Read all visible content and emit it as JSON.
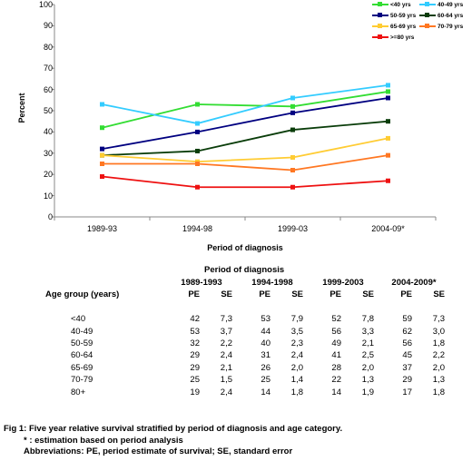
{
  "chart_data": {
    "type": "line",
    "categories": [
      "1989-93",
      "1994-98",
      "1999-03",
      "2004-09*"
    ],
    "ylabel": "Percent",
    "xlabel": "Period of diagnosis",
    "ylim": [
      0,
      100
    ],
    "yticks": [
      0,
      10,
      20,
      30,
      40,
      50,
      60,
      70,
      80,
      90,
      100
    ],
    "grid": false,
    "legend_position": "top-right",
    "series": [
      {
        "name": "<40 yrs",
        "color": "#33dd33",
        "values": [
          42,
          53,
          52,
          59
        ]
      },
      {
        "name": "40-49 yrs",
        "color": "#33ccff",
        "values": [
          53,
          44,
          56,
          62
        ]
      },
      {
        "name": "50-59 yrs",
        "color": "#000080",
        "values": [
          32,
          40,
          49,
          56
        ]
      },
      {
        "name": "60-64 yrs",
        "color": "#0a3d0a",
        "values": [
          29,
          31,
          41,
          45
        ]
      },
      {
        "name": "65-69 yrs",
        "color": "#ffcc33",
        "values": [
          29,
          26,
          28,
          37
        ]
      },
      {
        "name": "70-79 yrs",
        "color": "#ff7722",
        "values": [
          25,
          25,
          22,
          29
        ]
      },
      {
        "name": ">=80 yrs",
        "color": "#ee1111",
        "values": [
          19,
          14,
          14,
          17
        ]
      }
    ]
  },
  "table": {
    "group_header": "Period of diagnosis",
    "age_header": "Age group (years)",
    "periods": [
      "1989-1993",
      "1994-1998",
      "1999-2003",
      "2004-2009*"
    ],
    "pe_label": "PE",
    "se_label": "SE",
    "rows": [
      {
        "age": "<40",
        "values": [
          "42",
          "7,3",
          "53",
          "7,9",
          "52",
          "7,8",
          "59",
          "7,3"
        ]
      },
      {
        "age": "40-49",
        "values": [
          "53",
          "3,7",
          "44",
          "3,5",
          "56",
          "3,3",
          "62",
          "3,0"
        ]
      },
      {
        "age": "50-59",
        "values": [
          "32",
          "2,2",
          "40",
          "2,3",
          "49",
          "2,1",
          "56",
          "1,8"
        ]
      },
      {
        "age": "60-64",
        "values": [
          "29",
          "2,4",
          "31",
          "2,4",
          "41",
          "2,5",
          "45",
          "2,2"
        ]
      },
      {
        "age": "65-69",
        "values": [
          "29",
          "2,1",
          "26",
          "2,0",
          "28",
          "2,0",
          "37",
          "2,0"
        ]
      },
      {
        "age": "70-79",
        "values": [
          "25",
          "1,5",
          "25",
          "1,4",
          "22",
          "1,3",
          "29",
          "1,3"
        ]
      },
      {
        "age": "80+",
        "values": [
          "19",
          "2,4",
          "14",
          "1,8",
          "14",
          "1,9",
          "17",
          "1,8"
        ]
      }
    ]
  },
  "caption": {
    "line1": "Fig 1: Five year relative survival stratified by period of diagnosis and age category.",
    "line2": "* : estimation based on period analysis",
    "line3": "Abbreviations: PE, period estimate of survival; SE, standard error"
  }
}
